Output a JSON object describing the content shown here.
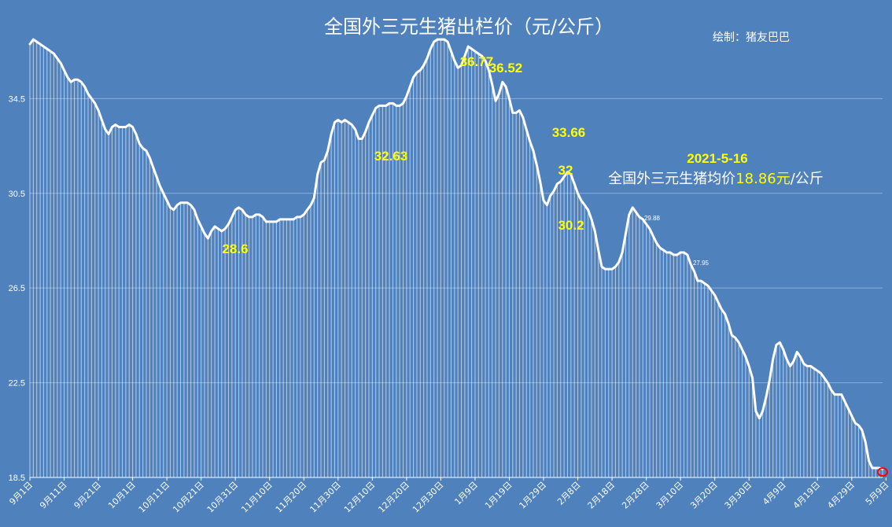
{
  "title": "全国外三元生猪出栏价（元/公斤）",
  "credit": "绘制：猪友巴巴",
  "note": {
    "date": "2021-5-16",
    "text_before": "全国外三元生猪均价",
    "price": "18.86元",
    "text_after": "/公斤"
  },
  "colors": {
    "background": "#4f81bd",
    "line": "#ffffff",
    "bars": "#ffffff",
    "highlight_text": "#ffff00",
    "end_marker": "#ff0000"
  },
  "chart_data": {
    "type": "line",
    "title": "全国外三元生猪出栏价（元/公斤）",
    "ylim": [
      18.5,
      38
    ],
    "yticks": [
      18.5,
      22.5,
      26.5,
      30.5,
      34.5
    ],
    "ytick_labels": [
      "18.5",
      "22.5",
      "26.5",
      "30.5",
      "34.5"
    ],
    "grid": true,
    "legend": "none",
    "start_date": "2020-09-01",
    "end_date": "2021-05-16",
    "xtick_labels": [
      "9月1日",
      "9月11日",
      "9月21日",
      "10月1日",
      "10月11日",
      "10月21日",
      "10月31日",
      "11月10日",
      "11月20日",
      "11月30日",
      "12月10日",
      "12月20日",
      "12月30日",
      "1月9日",
      "1月19日",
      "1月29日",
      "2月8日",
      "2月18日",
      "2月28日",
      "3月10日",
      "3月20日",
      "3月30日",
      "4月9日",
      "4月19日",
      "4月29日",
      "5月9日"
    ],
    "series": [
      {
        "values": [
          36.8,
          37.0,
          36.9,
          36.8,
          36.7,
          36.6,
          36.5,
          36.4,
          36.2,
          36.0,
          35.7,
          35.4,
          35.2,
          35.3,
          35.3,
          35.2,
          35.0,
          34.7,
          34.5,
          34.3,
          34.0,
          33.6,
          33.2,
          33.0,
          33.3,
          33.4,
          33.3,
          33.3,
          33.3,
          33.4,
          33.3,
          33.0,
          32.6,
          32.4,
          32.3,
          32.0,
          31.6,
          31.2,
          30.8,
          30.5,
          30.2,
          29.9,
          29.8,
          30.0,
          30.1,
          30.1,
          30.1,
          30.0,
          29.8,
          29.4,
          29.1,
          28.8,
          28.6,
          28.9,
          29.1,
          29.0,
          28.9,
          29.0,
          29.2,
          29.5,
          29.8,
          29.9,
          29.8,
          29.6,
          29.5,
          29.5,
          29.6,
          29.6,
          29.5,
          29.3,
          29.3,
          29.3,
          29.3,
          29.4,
          29.4,
          29.4,
          29.4,
          29.4,
          29.5,
          29.5,
          29.6,
          29.8,
          30.0,
          30.3,
          31.3,
          31.8,
          31.9,
          32.3,
          33.0,
          33.5,
          33.6,
          33.5,
          33.6,
          33.5,
          33.4,
          33.2,
          32.8,
          32.8,
          33.1,
          33.5,
          33.8,
          34.1,
          34.2,
          34.2,
          34.2,
          34.3,
          34.3,
          34.2,
          34.2,
          34.3,
          34.6,
          35.0,
          35.4,
          35.6,
          35.7,
          35.9,
          36.2,
          36.6,
          36.9,
          37.0,
          37.0,
          37.0,
          36.9,
          36.5,
          36.1,
          35.8,
          35.9,
          36.3,
          36.7,
          36.6,
          36.5,
          36.4,
          36.3,
          36.1,
          35.7,
          35.1,
          34.4,
          34.7,
          35.2,
          35.0,
          34.5,
          33.9,
          33.9,
          34.0,
          33.7,
          33.2,
          32.7,
          32.3,
          31.7,
          31.0,
          30.2,
          30.0,
          30.4,
          30.6,
          30.9,
          31.0,
          31.2,
          31.4,
          31.3,
          30.9,
          30.5,
          30.2,
          30.0,
          29.8,
          29.4,
          28.9,
          28.1,
          27.4,
          27.3,
          27.3,
          27.3,
          27.4,
          27.6,
          28.0,
          28.8,
          29.6,
          29.9,
          29.7,
          29.5,
          29.4,
          29.2,
          29.0,
          28.7,
          28.4,
          28.2,
          28.1,
          28.0,
          28.0,
          27.9,
          27.9,
          28.0,
          28.0,
          27.9,
          27.5,
          27.2,
          26.8,
          26.8,
          26.7,
          26.6,
          26.4,
          26.2,
          25.9,
          25.6,
          25.4,
          25.0,
          24.5,
          24.4,
          24.2,
          23.9,
          23.6,
          23.2,
          22.7,
          21.3,
          21.0,
          21.3,
          21.9,
          22.6,
          23.5,
          24.1,
          24.2,
          23.9,
          23.5,
          23.2,
          23.4,
          23.8,
          23.6,
          23.3,
          23.2,
          23.2,
          23.1,
          23.0,
          22.9,
          22.7,
          22.5,
          22.2,
          22.0,
          22.0,
          22.0,
          21.7,
          21.4,
          21.1,
          20.8,
          20.7,
          20.5,
          20.0,
          19.2,
          18.9,
          18.9,
          18.9,
          18.86
        ]
      }
    ],
    "annotations": [
      {
        "text": "36.77",
        "value": 36.77,
        "color": "yellow"
      },
      {
        "text": "36.52",
        "value": 36.52,
        "color": "yellow"
      },
      {
        "text": "33.66",
        "value": 33.66,
        "color": "yellow"
      },
      {
        "text": "32.63",
        "value": 32.63,
        "color": "yellow"
      },
      {
        "text": "32",
        "value": 32,
        "color": "yellow"
      },
      {
        "text": "30.2",
        "value": 30.2,
        "color": "yellow"
      },
      {
        "text": "28.6",
        "value": 28.6,
        "color": "yellow"
      },
      {
        "text": "29.88",
        "value": 29.88,
        "color": "white"
      },
      {
        "text": "27.95",
        "value": 27.95,
        "color": "white"
      }
    ],
    "last_point_marker": true
  }
}
